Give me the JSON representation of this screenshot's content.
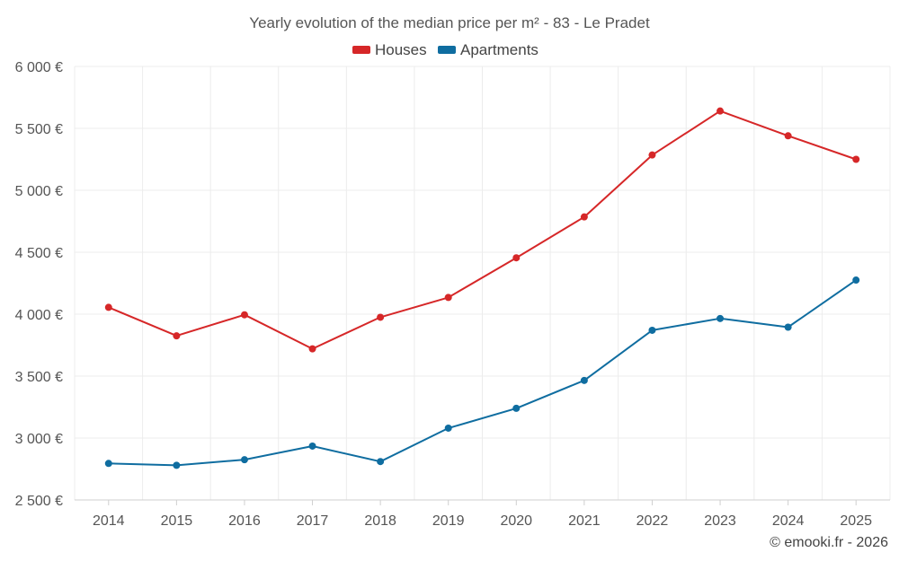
{
  "chart_data": {
    "type": "line",
    "title": "Yearly evolution of the median price per m² - 83 - Le Pradet",
    "categories": [
      "2014",
      "2015",
      "2016",
      "2017",
      "2018",
      "2019",
      "2020",
      "2021",
      "2022",
      "2023",
      "2024",
      "2025"
    ],
    "series": [
      {
        "name": "Houses",
        "color": "#d62728",
        "values": [
          4055,
          3825,
          3995,
          3720,
          3975,
          4135,
          4455,
          4785,
          5285,
          5640,
          5440,
          5250
        ]
      },
      {
        "name": "Apartments",
        "color": "#0f6da0",
        "values": [
          2795,
          2780,
          2825,
          2935,
          2810,
          3080,
          3240,
          3465,
          3870,
          3965,
          3895,
          4275
        ]
      }
    ],
    "ylim": [
      2500,
      6000
    ],
    "yticks": [
      2500,
      3000,
      3500,
      4000,
      4500,
      5000,
      5500,
      6000
    ],
    "ytick_labels": [
      "2 500 €",
      "3 000 €",
      "3 500 €",
      "4 000 €",
      "4 500 €",
      "5 000 €",
      "5 500 €",
      "6 000 €"
    ],
    "xlabel": "",
    "ylabel": "",
    "grid": true,
    "legend_position": "top-center",
    "credit": "© emooki.fr - 2026"
  }
}
